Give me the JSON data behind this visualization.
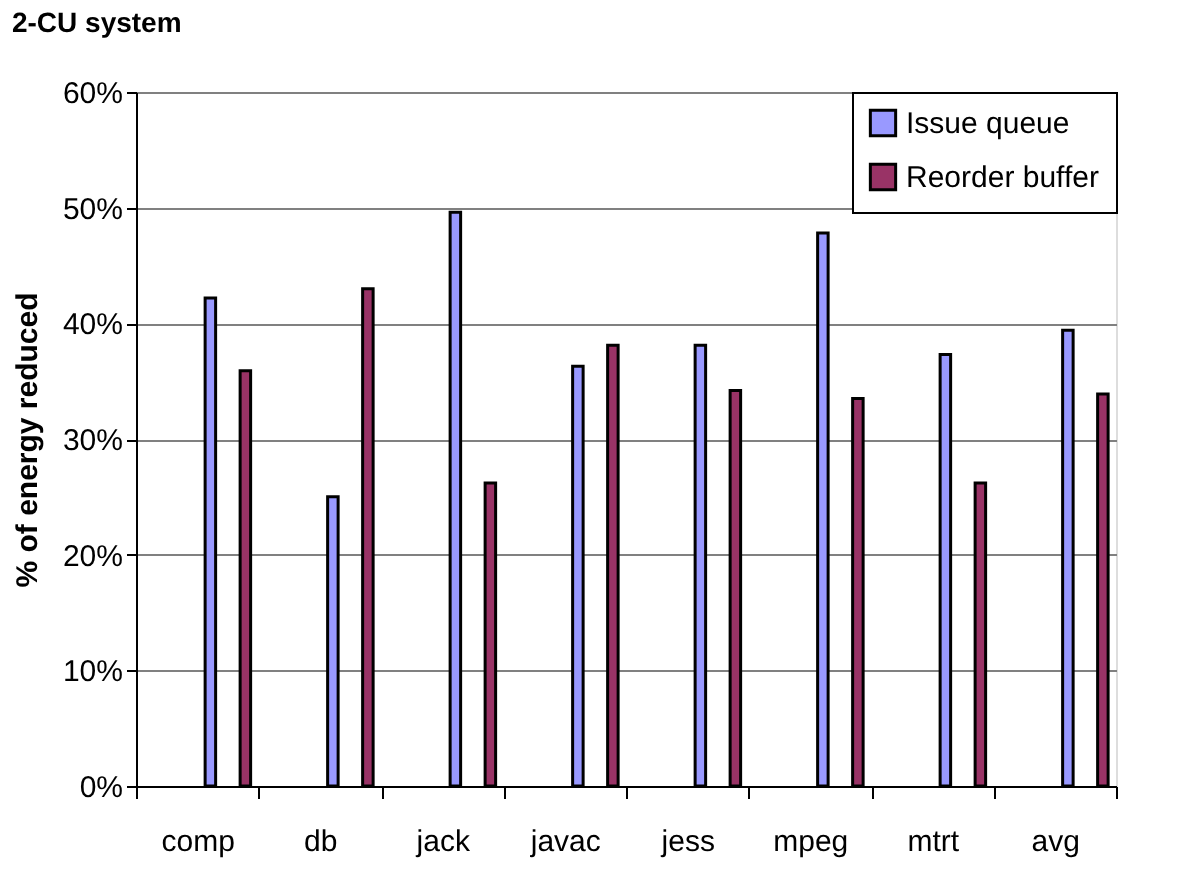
{
  "chart_data": {
    "type": "bar",
    "title": "2-CU system",
    "ylabel": "% of energy reduced",
    "categories": [
      "comp",
      "db",
      "jack",
      "javac",
      "jess",
      "mpeg",
      "mtrt",
      "avg"
    ],
    "series": [
      {
        "name": "Issue queue",
        "color": "#9999ff",
        "values": [
          42.2,
          25.0,
          49.6,
          36.3,
          38.1,
          47.8,
          37.3,
          39.4
        ]
      },
      {
        "name": "Reorder buffer",
        "color": "#993366",
        "values": [
          35.9,
          43.0,
          26.2,
          38.1,
          34.2,
          33.5,
          26.2,
          33.9
        ]
      }
    ],
    "ylim": [
      0,
      60
    ],
    "yticks": [
      {
        "value": 0,
        "label": "0%"
      },
      {
        "value": 10,
        "label": "10%"
      },
      {
        "value": 20,
        "label": "20%"
      },
      {
        "value": 30,
        "label": "30%"
      },
      {
        "value": 40,
        "label": "40%"
      },
      {
        "value": 50,
        "label": "50%"
      },
      {
        "value": 60,
        "label": "60%"
      }
    ],
    "grid": "y",
    "legend": "top right"
  }
}
